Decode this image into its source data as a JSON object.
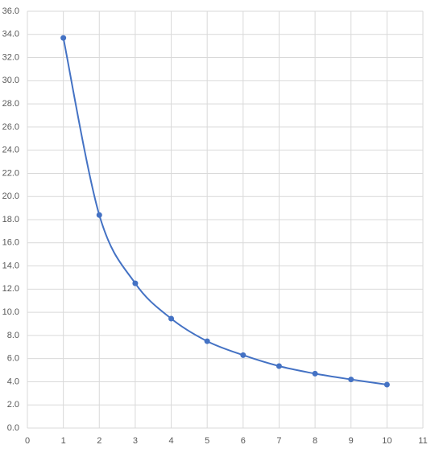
{
  "chart_data": {
    "type": "line",
    "x": [
      1,
      2,
      3,
      4,
      5,
      6,
      7,
      8,
      9,
      10
    ],
    "values": [
      33.7,
      18.4,
      12.5,
      9.45,
      7.5,
      6.3,
      5.35,
      4.7,
      4.2,
      3.75
    ],
    "color": "#4472c4",
    "smooth": true,
    "markers": true,
    "grid": true,
    "xlim": [
      0,
      11
    ],
    "xticks": [
      0,
      1,
      2,
      3,
      4,
      5,
      6,
      7,
      8,
      9,
      10,
      11
    ],
    "ylim": [
      0,
      36
    ],
    "yticks": [
      {
        "value": 0,
        "label": "0.0"
      },
      {
        "value": 2,
        "label": "2.0"
      },
      {
        "value": 4,
        "label": "4.0"
      },
      {
        "value": 6,
        "label": "6.0"
      },
      {
        "value": 8,
        "label": "8.0"
      },
      {
        "value": 10,
        "label": "10.0"
      },
      {
        "value": 12,
        "label": "12.0"
      },
      {
        "value": 14,
        "label": "14.0"
      },
      {
        "value": 16,
        "label": "16.0"
      },
      {
        "value": 18,
        "label": "18.0"
      },
      {
        "value": 20,
        "label": "20.0"
      },
      {
        "value": 22,
        "label": "22.0"
      },
      {
        "value": 24,
        "label": "24.0"
      },
      {
        "value": 26,
        "label": "26.0"
      },
      {
        "value": 28,
        "label": "28.0"
      },
      {
        "value": 30,
        "label": "30.0"
      },
      {
        "value": 32,
        "label": "32.0"
      },
      {
        "value": 34,
        "label": "34.0"
      },
      {
        "value": 36,
        "label": "36.0"
      }
    ]
  }
}
